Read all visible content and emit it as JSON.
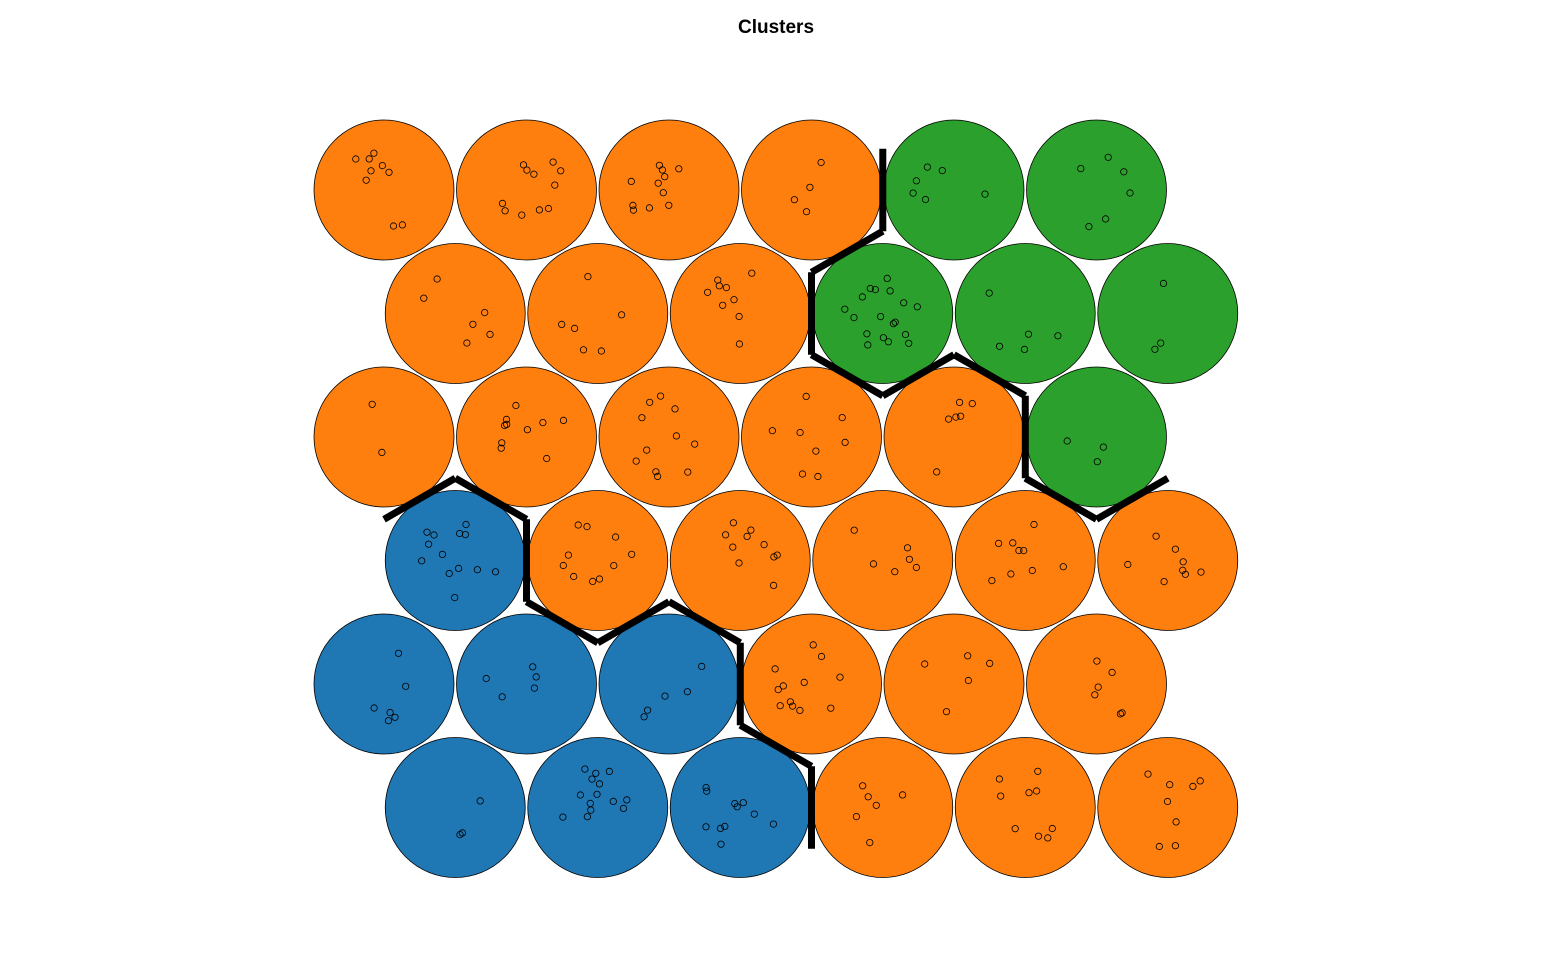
{
  "chart_data": {
    "type": "other",
    "title": "Clusters",
    "grid": {
      "type": "hexagonal",
      "columns": 6,
      "rows": 6
    },
    "cluster_colors": {
      "blue": "#1f77b4",
      "orange": "#ff7f0e",
      "green": "#2ca02c"
    },
    "units": [
      {
        "row": 0,
        "col": 0,
        "cluster": "orange",
        "points": 9
      },
      {
        "row": 0,
        "col": 1,
        "cluster": "orange",
        "points": 11
      },
      {
        "row": 0,
        "col": 2,
        "cluster": "orange",
        "points": 11
      },
      {
        "row": 0,
        "col": 3,
        "cluster": "orange",
        "points": 4
      },
      {
        "row": 0,
        "col": 4,
        "cluster": "green",
        "points": 6
      },
      {
        "row": 0,
        "col": 5,
        "cluster": "green",
        "points": 6
      },
      {
        "row": 1,
        "col": 0,
        "cluster": "orange",
        "points": 6
      },
      {
        "row": 1,
        "col": 1,
        "cluster": "orange",
        "points": 6
      },
      {
        "row": 1,
        "col": 2,
        "cluster": "orange",
        "points": 9
      },
      {
        "row": 1,
        "col": 3,
        "cluster": "green",
        "points": 18
      },
      {
        "row": 1,
        "col": 4,
        "cluster": "green",
        "points": 5
      },
      {
        "row": 1,
        "col": 5,
        "cluster": "green",
        "points": 3
      },
      {
        "row": 2,
        "col": 0,
        "cluster": "orange",
        "points": 2
      },
      {
        "row": 2,
        "col": 1,
        "cluster": "orange",
        "points": 10
      },
      {
        "row": 2,
        "col": 2,
        "cluster": "orange",
        "points": 11
      },
      {
        "row": 2,
        "col": 3,
        "cluster": "orange",
        "points": 8
      },
      {
        "row": 2,
        "col": 4,
        "cluster": "orange",
        "points": 6
      },
      {
        "row": 2,
        "col": 5,
        "cluster": "green",
        "points": 3
      },
      {
        "row": 3,
        "col": 0,
        "cluster": "blue",
        "points": 13
      },
      {
        "row": 3,
        "col": 1,
        "cluster": "orange",
        "points": 10
      },
      {
        "row": 3,
        "col": 2,
        "cluster": "orange",
        "points": 10
      },
      {
        "row": 3,
        "col": 3,
        "cluster": "orange",
        "points": 6
      },
      {
        "row": 3,
        "col": 4,
        "cluster": "orange",
        "points": 9
      },
      {
        "row": 3,
        "col": 5,
        "cluster": "orange",
        "points": 8
      },
      {
        "row": 4,
        "col": 0,
        "cluster": "blue",
        "points": 6
      },
      {
        "row": 4,
        "col": 1,
        "cluster": "blue",
        "points": 5
      },
      {
        "row": 4,
        "col": 2,
        "cluster": "blue",
        "points": 5
      },
      {
        "row": 4,
        "col": 3,
        "cluster": "orange",
        "points": 12
      },
      {
        "row": 4,
        "col": 4,
        "cluster": "orange",
        "points": 5
      },
      {
        "row": 4,
        "col": 5,
        "cluster": "orange",
        "points": 6
      },
      {
        "row": 5,
        "col": 0,
        "cluster": "blue",
        "points": 3
      },
      {
        "row": 5,
        "col": 1,
        "cluster": "blue",
        "points": 14
      },
      {
        "row": 5,
        "col": 2,
        "cluster": "blue",
        "points": 11
      },
      {
        "row": 5,
        "col": 3,
        "cluster": "orange",
        "points": 6
      },
      {
        "row": 5,
        "col": 4,
        "cluster": "orange",
        "points": 9
      },
      {
        "row": 5,
        "col": 5,
        "cluster": "orange",
        "points": 8
      }
    ]
  }
}
